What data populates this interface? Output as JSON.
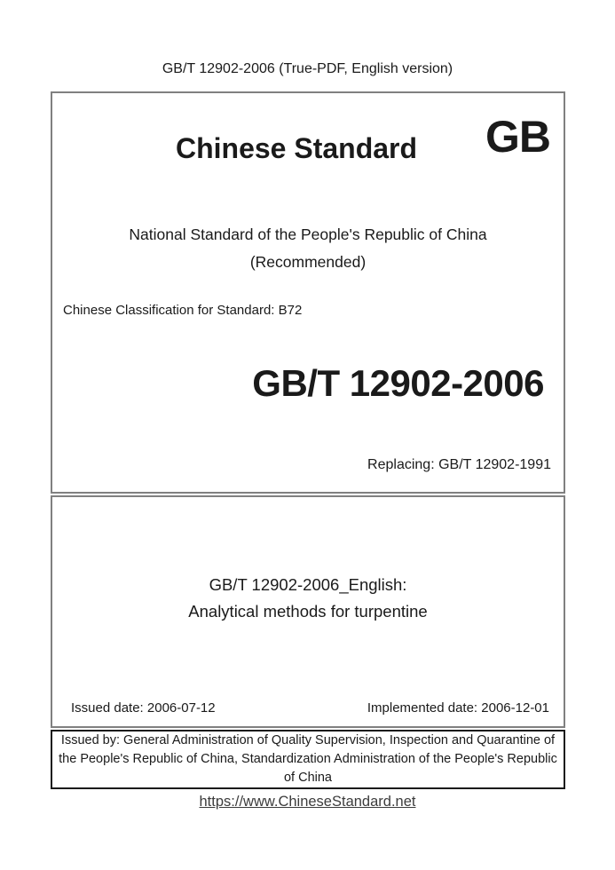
{
  "header": {
    "title": "GB/T 12902-2006 (True-PDF, English version)"
  },
  "cover": {
    "brand": "Chinese Standard",
    "gb_logo": "GB",
    "national_line": "National Standard of the People's Republic of China",
    "recommended_line": "(Recommended)",
    "classification": "Chinese Classification for Standard: B72",
    "standard_code": "GB/T 12902-2006",
    "replacing": "Replacing: GB/T 12902-1991"
  },
  "title_block": {
    "english_label": "GB/T 12902-2006_English:",
    "english_title": "Analytical methods for turpentine"
  },
  "dates": {
    "issued": "Issued date: 2006-07-12",
    "implemented": "Implemented date: 2006-12-01"
  },
  "issuer": {
    "text": "Issued by: General Administration of Quality Supervision, Inspection and Quarantine of the People's Republic of China, Standardization Administration of the People's Republic of China"
  },
  "footer": {
    "link": "https://www.ChineseStandard.net"
  },
  "colors": {
    "box_border": "#808080",
    "issuer_border": "#1a1a1a",
    "text": "#1a1a1a",
    "link": "#3c3c3c"
  }
}
